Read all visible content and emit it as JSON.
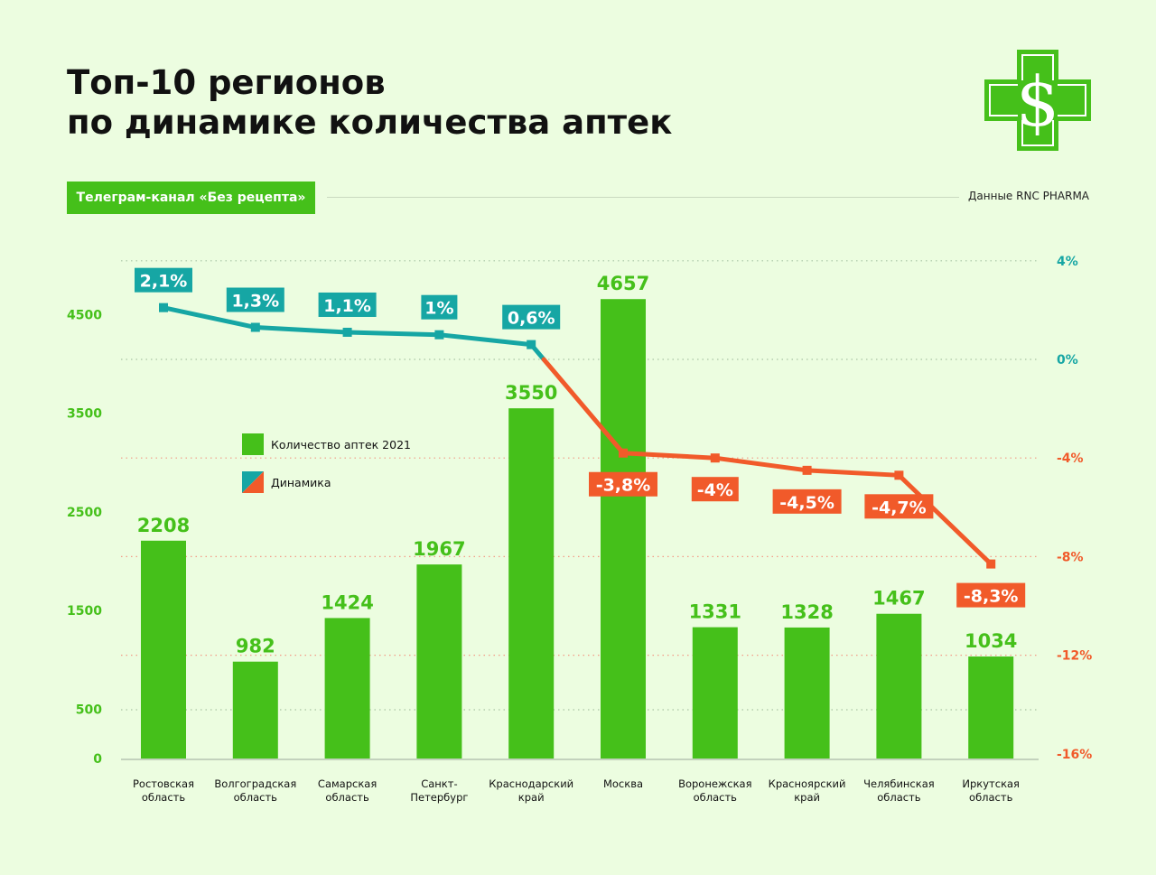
{
  "header": {
    "title_line1": "Топ-10 регионов",
    "title_line2": "по динамике количества аптек",
    "channel_label": "Телеграм-канал «Без рецепта»",
    "source": "Данные RNC PHARMA"
  },
  "logo": {
    "icon": "dollar-cross-icon",
    "symbol": "$"
  },
  "colors": {
    "bar": "#45c01a",
    "positive": "#16a6a4",
    "negative": "#f15a2a",
    "background": "#ecfde0"
  },
  "chart_data": {
    "type": "bar",
    "categories": [
      [
        "Ростовская",
        "область"
      ],
      [
        "Волгоградская",
        "область"
      ],
      [
        "Самарская",
        "область"
      ],
      [
        "Санкт-",
        "Петербург"
      ],
      [
        "Краснодарский",
        "край"
      ],
      [
        "Москва"
      ],
      [
        "Воронежская",
        "область"
      ],
      [
        "Красноярский",
        "край"
      ],
      [
        "Челябинская",
        "область"
      ],
      [
        "Иркутская",
        "область"
      ]
    ],
    "series": [
      {
        "name": "Количество аптек 2021",
        "type": "bar",
        "axis": "left",
        "values": [
          2208,
          982,
          1424,
          1967,
          3550,
          4657,
          1331,
          1328,
          1467,
          1034
        ],
        "labels": [
          "2208",
          "982",
          "1424",
          "1967",
          "3550",
          "4657",
          "1331",
          "1328",
          "1467",
          "1034"
        ]
      },
      {
        "name": "Динамика",
        "type": "line",
        "axis": "right",
        "values": [
          2.1,
          1.3,
          1.1,
          1.0,
          0.6,
          -3.8,
          -4.0,
          -4.5,
          -4.7,
          -8.3
        ],
        "labels": [
          "2,1%",
          "1,3%",
          "1,1%",
          "1%",
          "0,6%",
          "-3,8%",
          "-4%",
          "-4,5%",
          "-4,7%",
          "-8,3%"
        ]
      }
    ],
    "left_axis": {
      "ticks": [
        0,
        500,
        1500,
        2500,
        3500,
        4500
      ],
      "tick_labels": [
        "0",
        "500",
        "1500",
        "2500",
        "3500",
        "4500"
      ]
    },
    "right_axis": {
      "ticks": [
        4,
        0,
        -4,
        -8,
        -12,
        -16
      ],
      "tick_labels": [
        "4%",
        "0%",
        "-4%",
        "-8%",
        "-12%",
        "-16%"
      ]
    },
    "grid": true,
    "legend": [
      {
        "label": "Количество аптек 2021",
        "swatch": "bar"
      },
      {
        "label": "Динамика",
        "swatch": "dynamics"
      }
    ]
  }
}
